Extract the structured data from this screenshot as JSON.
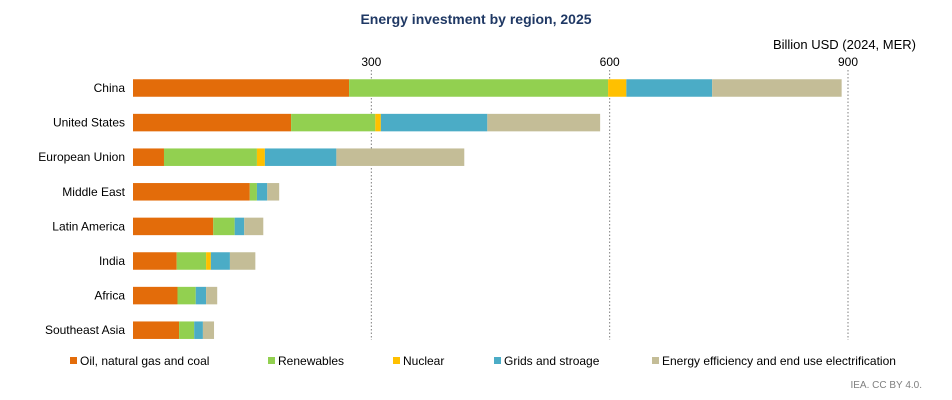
{
  "chart_data": {
    "type": "bar",
    "orientation": "horizontal",
    "stacked": true,
    "title": "Energy investment by region, 2025",
    "unit_label": "Billion USD (2024, MER)",
    "xlim": [
      0,
      900
    ],
    "xticks": [
      300,
      600,
      900
    ],
    "grid": "vertical dotted at ticks",
    "legend_position": "bottom",
    "categories": [
      "China",
      "United States",
      "European Union",
      "Middle East",
      "Latin America",
      "India",
      "Africa",
      "Southeast Asia"
    ],
    "series": [
      {
        "name": "Oil, natural gas and coal",
        "color": "#e36c0a",
        "values": [
          272,
          199,
          39,
          147,
          101,
          55,
          56,
          58
        ]
      },
      {
        "name": "Renewables",
        "color": "#92d050",
        "values": [
          326,
          106,
          117,
          9,
          27,
          37,
          23,
          19
        ]
      },
      {
        "name": "Nuclear",
        "color": "#ffc000",
        "values": [
          23,
          7,
          10,
          0,
          0,
          6,
          0,
          0
        ]
      },
      {
        "name": "Grids and stroage",
        "color": "#4bacc6",
        "values": [
          108,
          134,
          90,
          13,
          12,
          24,
          13,
          11
        ]
      },
      {
        "name": "Energy efficiency and end use electrification",
        "color": "#c4bd97",
        "values": [
          163,
          142,
          161,
          15,
          24,
          32,
          14,
          14
        ]
      }
    ]
  },
  "source": "IEA. CC BY 4.0."
}
